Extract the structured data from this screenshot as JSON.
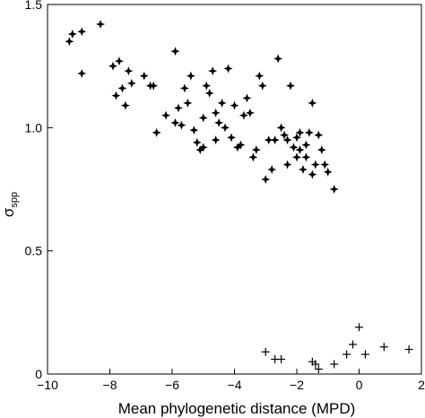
{
  "chart_data": {
    "type": "scatter",
    "xlabel": "Mean phylogenetic distance (MPD)",
    "ylabel_main": "σ",
    "ylabel_sub": "spp",
    "xlim": [
      -10,
      2
    ],
    "ylim": [
      0,
      1.5
    ],
    "xticks": [
      -10,
      -8,
      -6,
      -4,
      -2,
      0,
      2
    ],
    "xtick_labels": [
      "−10",
      "−8",
      "−6",
      "−4",
      "−2",
      "0",
      "2"
    ],
    "yticks": [
      0,
      0.5,
      1.0,
      1.5
    ],
    "ytick_labels": [
      "0",
      "0.5",
      "1.0",
      "1.5"
    ],
    "grid": false,
    "legend": "none",
    "series": [
      {
        "marker": "four-point-star",
        "points": [
          [
            -9.3,
            1.35
          ],
          [
            -9.2,
            1.38
          ],
          [
            -8.9,
            1.39
          ],
          [
            -8.9,
            1.22
          ],
          [
            -8.3,
            1.42
          ],
          [
            -7.9,
            1.25
          ],
          [
            -7.8,
            1.13
          ],
          [
            -7.7,
            1.27
          ],
          [
            -7.6,
            1.16
          ],
          [
            -7.5,
            1.09
          ],
          [
            -7.4,
            1.23
          ],
          [
            -7.3,
            1.18
          ],
          [
            -6.9,
            1.21
          ],
          [
            -6.7,
            1.17
          ],
          [
            -6.6,
            1.17
          ],
          [
            -6.5,
            0.98
          ],
          [
            -6.2,
            1.05
          ],
          [
            -5.9,
            1.31
          ],
          [
            -5.9,
            1.02
          ],
          [
            -5.8,
            1.08
          ],
          [
            -5.7,
            1.01
          ],
          [
            -5.6,
            1.16
          ],
          [
            -5.5,
            1.1
          ],
          [
            -5.4,
            1.21
          ],
          [
            -5.3,
            0.99
          ],
          [
            -5.2,
            0.94
          ],
          [
            -5.1,
            0.91
          ],
          [
            -5.0,
            0.92
          ],
          [
            -5.0,
            1.04
          ],
          [
            -4.9,
            1.17
          ],
          [
            -4.8,
            1.14
          ],
          [
            -4.7,
            1.23
          ],
          [
            -4.6,
            1.06
          ],
          [
            -4.6,
            0.95
          ],
          [
            -4.5,
            1.02
          ],
          [
            -4.4,
            1.1
          ],
          [
            -4.3,
            1.0
          ],
          [
            -4.2,
            1.24
          ],
          [
            -4.1,
            0.96
          ],
          [
            -4.0,
            1.09
          ],
          [
            -3.9,
            0.92
          ],
          [
            -3.8,
            0.93
          ],
          [
            -3.7,
            1.05
          ],
          [
            -3.6,
            1.12
          ],
          [
            -3.5,
            1.06
          ],
          [
            -3.4,
            0.88
          ],
          [
            -3.3,
            0.91
          ],
          [
            -3.2,
            1.21
          ],
          [
            -3.1,
            1.17
          ],
          [
            -3.0,
            0.79
          ],
          [
            -2.9,
            0.95
          ],
          [
            -2.8,
            0.83
          ],
          [
            -2.7,
            0.95
          ],
          [
            -2.6,
            1.28
          ],
          [
            -2.5,
            1.0
          ],
          [
            -2.4,
            0.97
          ],
          [
            -2.3,
            0.95
          ],
          [
            -2.3,
            0.85
          ],
          [
            -2.2,
            1.17
          ],
          [
            -2.1,
            0.92
          ],
          [
            -2.0,
            0.96
          ],
          [
            -2.0,
            0.88
          ],
          [
            -1.9,
            0.91
          ],
          [
            -1.9,
            0.98
          ],
          [
            -1.8,
            0.83
          ],
          [
            -1.7,
            0.93
          ],
          [
            -1.7,
            0.88
          ],
          [
            -1.6,
            0.98
          ],
          [
            -1.5,
            0.81
          ],
          [
            -1.5,
            1.1
          ],
          [
            -1.4,
            0.85
          ],
          [
            -1.3,
            0.97
          ],
          [
            -1.2,
            0.91
          ],
          [
            -1.1,
            0.85
          ],
          [
            -1.0,
            0.82
          ],
          [
            -0.8,
            0.75
          ]
        ]
      },
      {
        "marker": "plus",
        "points": [
          [
            -3.0,
            0.09
          ],
          [
            -2.7,
            0.06
          ],
          [
            -2.5,
            0.06
          ],
          [
            -1.5,
            0.05
          ],
          [
            -1.4,
            0.04
          ],
          [
            -1.3,
            0.02
          ],
          [
            -0.8,
            0.04
          ],
          [
            -0.4,
            0.08
          ],
          [
            -0.2,
            0.12
          ],
          [
            0.0,
            0.19
          ],
          [
            0.2,
            0.08
          ],
          [
            0.8,
            0.11
          ],
          [
            1.6,
            0.1
          ]
        ]
      }
    ]
  }
}
